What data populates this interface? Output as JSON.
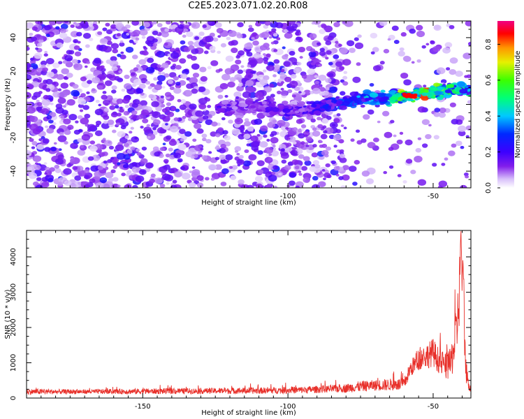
{
  "figure": {
    "title": "C2E5.2023.071.02.20.R08"
  },
  "chart_data": [
    {
      "type": "heatmap",
      "title": "C2E5.2023.071.02.20.R08",
      "xlabel": "Height of straight line (km)",
      "ylabel": "Frequency (Hz)",
      "xlim": [
        -190,
        -37
      ],
      "ylim": [
        -50,
        50
      ],
      "x_ticks": [
        -150,
        -100,
        -50
      ],
      "y_ticks": [
        -40,
        -20,
        0,
        20,
        40
      ],
      "grid": false,
      "colorbar": {
        "label": "Normalized spectral amplitude",
        "range": [
          0,
          0.93
        ],
        "ticks": [
          0,
          0.2,
          0.4,
          0.6,
          0.8
        ],
        "tick_labels": [
          "0.0",
          "0.2",
          "0.4",
          "0.6",
          "0.8"
        ],
        "colormap": "rainbow (white-violet-blue-cyan-green-yellow-orange-red-magenta)"
      },
      "signal_track": {
        "description_points_x": [
          -125,
          -115,
          -105,
          -95,
          -85,
          -75,
          -65,
          -55,
          -45,
          -40
        ],
        "frequency_hz": [
          -2,
          -1,
          -2,
          -4,
          0,
          3,
          4,
          6,
          8,
          9
        ],
        "peak_amplitude": [
          0.2,
          0.15,
          0.2,
          0.2,
          0.3,
          0.4,
          0.5,
          0.9,
          0.6,
          0.5
        ]
      },
      "background_noise_amplitude": 0.12
    },
    {
      "type": "line",
      "xlabel": "Height of straight line (km)",
      "ylabel": "SNR (10 * v/v)",
      "xlim": [
        -190,
        -37
      ],
      "ylim": [
        0,
        4750
      ],
      "x_ticks": [
        -150,
        -100,
        -50
      ],
      "y_ticks": [
        0,
        1000,
        2000,
        3000,
        4000
      ],
      "grid": false,
      "color": "#e8302a",
      "envelope": {
        "x": [
          -190,
          -170,
          -150,
          -130,
          -110,
          -95,
          -85,
          -80,
          -75,
          -70,
          -65,
          -60,
          -58,
          -55,
          -52,
          -50,
          -48,
          -46,
          -44,
          -42,
          -41,
          -40.5,
          -40,
          -39.5,
          -39,
          -38,
          -37
        ],
        "baseline": [
          180,
          180,
          190,
          200,
          210,
          230,
          260,
          280,
          330,
          360,
          380,
          390,
          800,
          1100,
          1200,
          1300,
          1050,
          900,
          950,
          1800,
          2900,
          4700,
          3300,
          3000,
          1200,
          400,
          300
        ],
        "noise": [
          90,
          70,
          90,
          90,
          100,
          110,
          120,
          140,
          170,
          170,
          190,
          200,
          250,
          350,
          400,
          450,
          400,
          400,
          500,
          900,
          1000,
          400,
          800,
          900,
          700,
          200,
          150
        ]
      }
    }
  ]
}
